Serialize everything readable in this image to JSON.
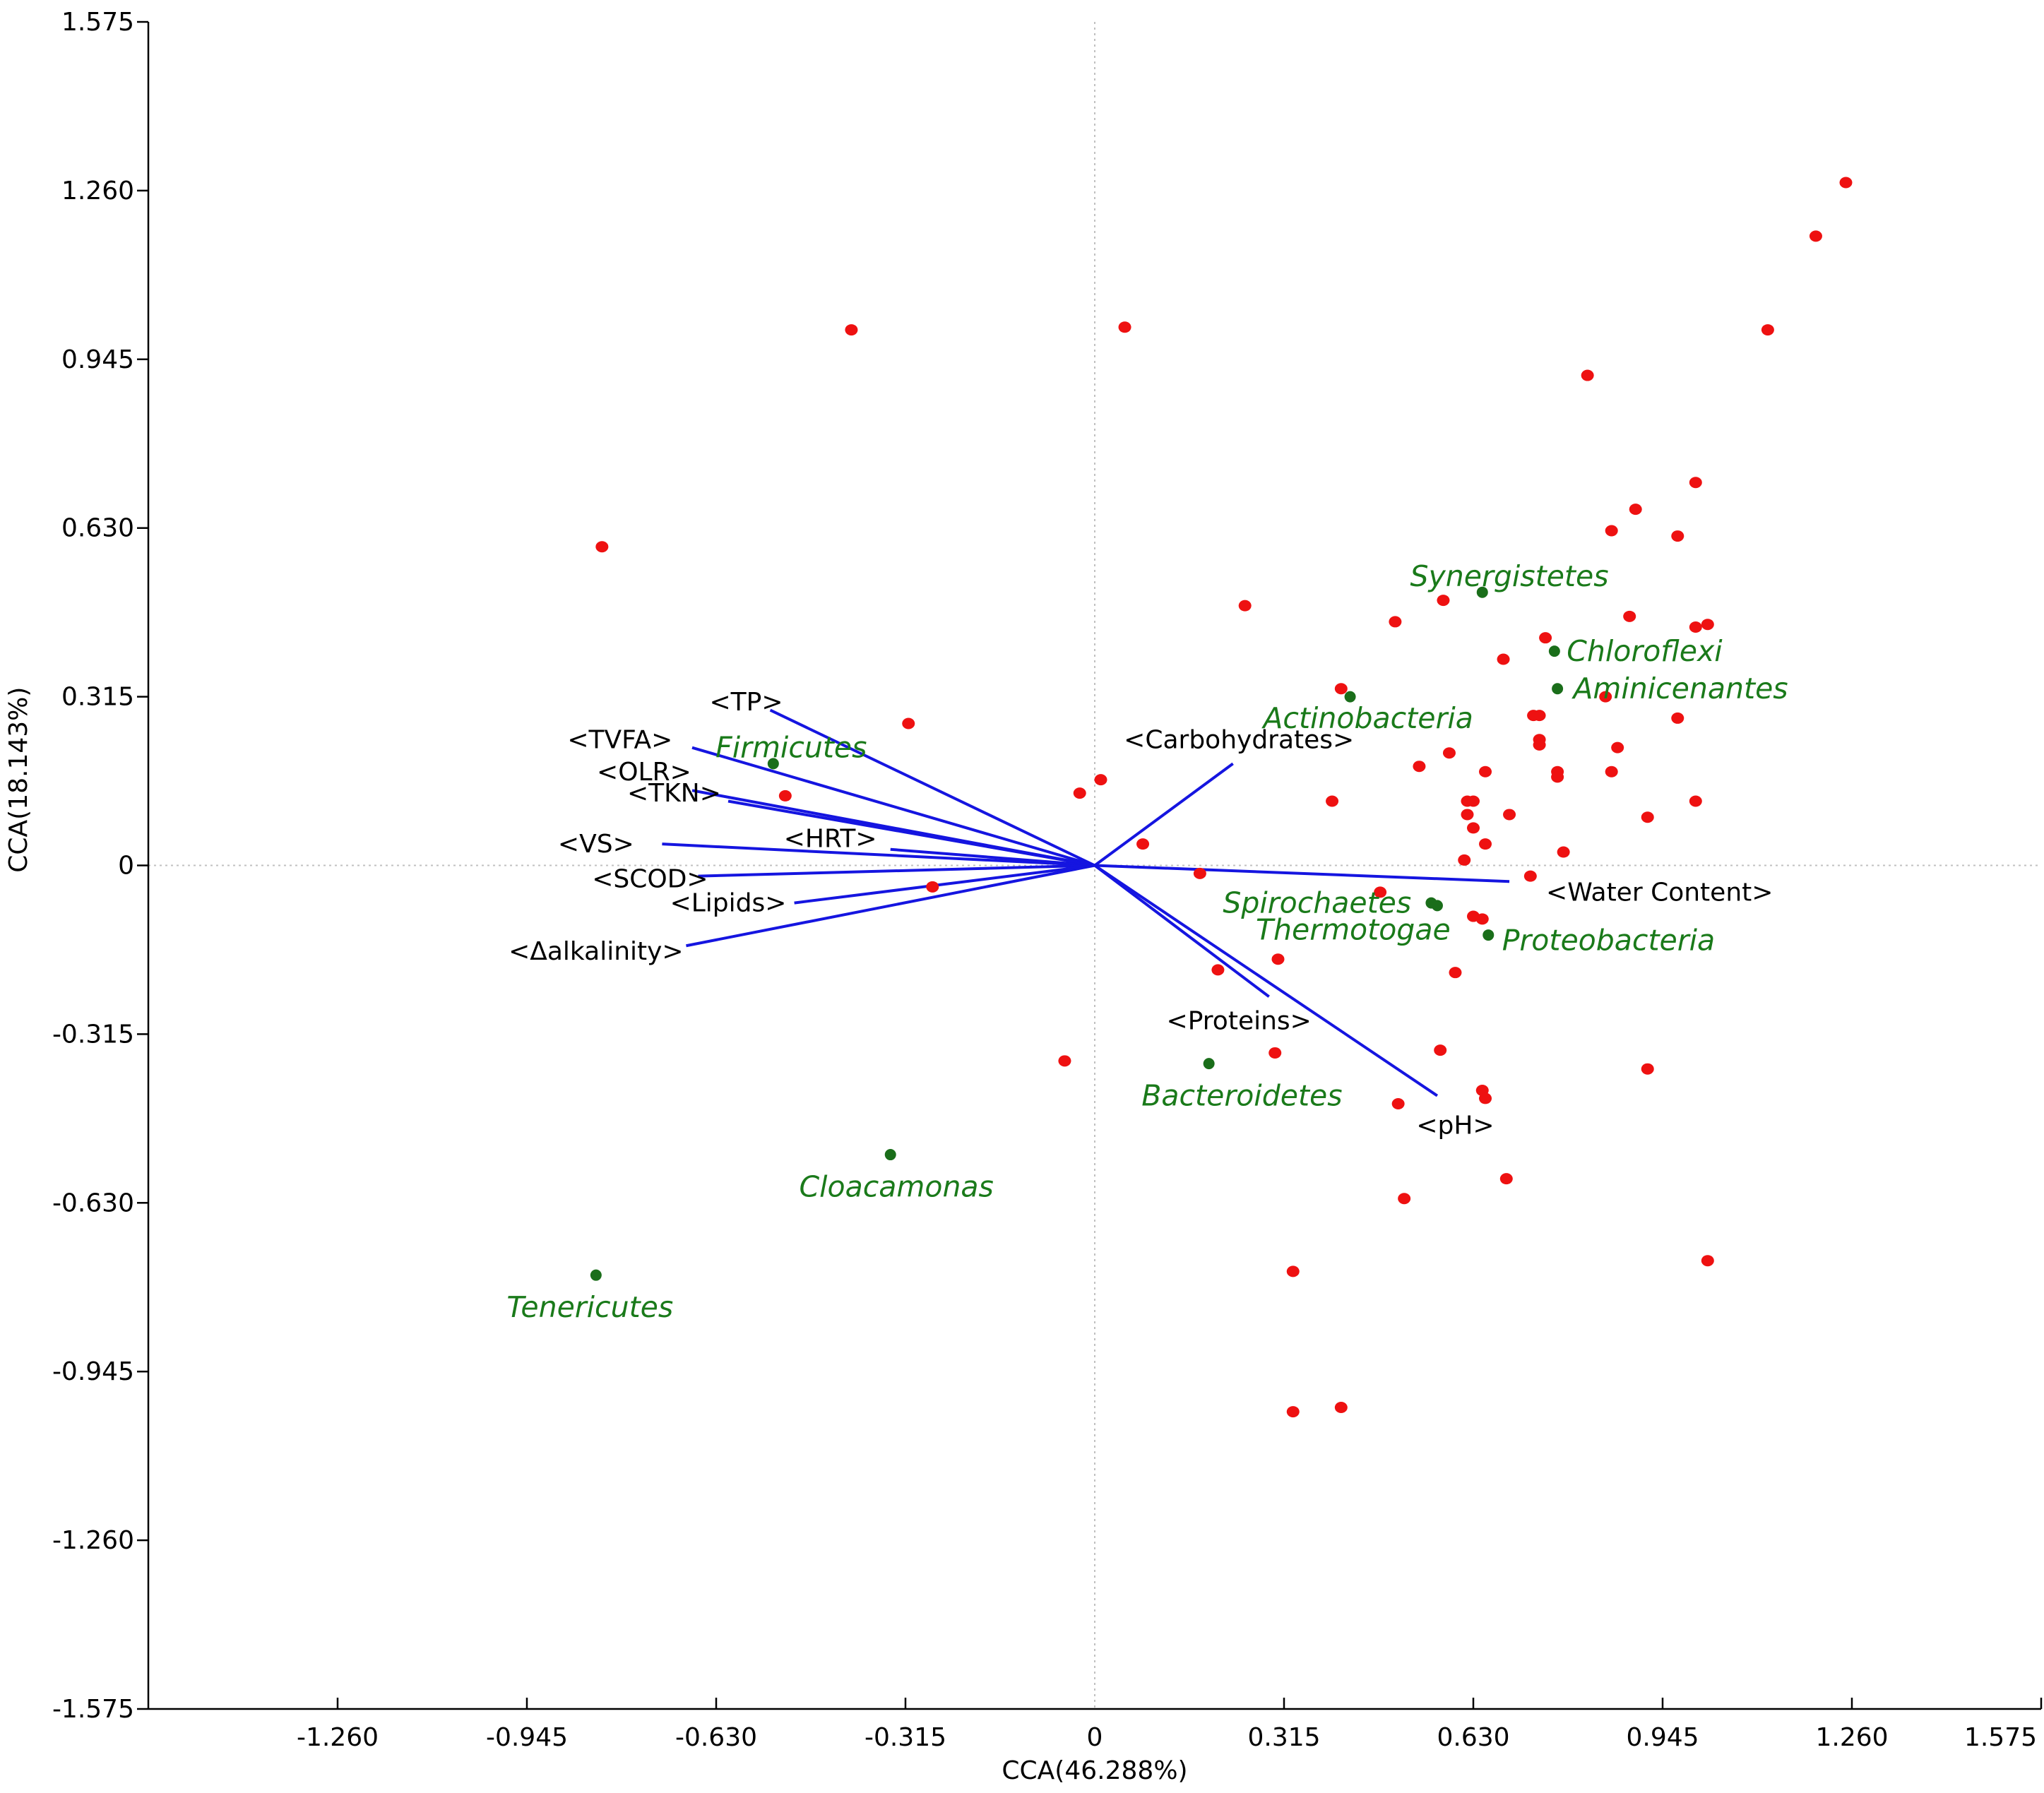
{
  "chart_data": {
    "type": "scatter",
    "subtype": "cca-triplot",
    "xlabel": "CCA(46.288%)",
    "ylabel": "CCA(18.143%)",
    "xlim": [
      -1.575,
      1.575
    ],
    "ylim": [
      -1.575,
      1.575
    ],
    "x_ticks": [
      "-1.260",
      "-0.945",
      "-0.630",
      "-0.315",
      "0",
      "0.315",
      "0.630",
      "0.945",
      "1.260",
      "1.575"
    ],
    "x_tick_values": [
      -1.26,
      -0.945,
      -0.63,
      -0.315,
      0,
      0.315,
      0.63,
      0.945,
      1.26,
      1.575
    ],
    "y_ticks": [
      "1.575",
      "1.260",
      "0.945",
      "0.630",
      "0.315",
      "0",
      "-0.315",
      "-0.630",
      "-0.945",
      "-1.260",
      "-1.575"
    ],
    "y_tick_values": [
      1.575,
      1.26,
      0.945,
      0.63,
      0.315,
      0,
      -0.315,
      -0.63,
      -0.945,
      -1.26,
      -1.575
    ],
    "colors": {
      "samples": "#ee1111",
      "taxa": "#1a6e1a",
      "taxa_text": "#1a7a1a",
      "vectors": "#1515e0",
      "origin_lines": "#c0c0c0"
    },
    "env_vectors": [
      {
        "name": "<TP>",
        "x": -0.54,
        "y": 0.29,
        "lx": -0.58,
        "ly": 0.305
      },
      {
        "name": "<TVFA>",
        "x": -0.67,
        "y": 0.22,
        "lx": -0.79,
        "ly": 0.235
      },
      {
        "name": "<OLR>",
        "x": -0.67,
        "y": 0.14,
        "lx": -0.75,
        "ly": 0.175
      },
      {
        "name": "<TKN>",
        "x": -0.61,
        "y": 0.12,
        "lx": -0.7,
        "ly": 0.135
      },
      {
        "name": "<HRT>",
        "x": -0.34,
        "y": 0.03,
        "lx": -0.44,
        "ly": 0.05
      },
      {
        "name": "<VS>",
        "x": -0.72,
        "y": 0.04,
        "lx": -0.83,
        "ly": 0.04
      },
      {
        "name": "<SCOD>",
        "x": -0.66,
        "y": -0.02,
        "lx": -0.74,
        "ly": -0.025
      },
      {
        "name": "<Lipids>",
        "x": -0.5,
        "y": -0.07,
        "lx": -0.61,
        "ly": -0.07
      },
      {
        "name": "<Δalkalinity>",
        "x": -0.68,
        "y": -0.15,
        "lx": -0.83,
        "ly": -0.16
      },
      {
        "name": "<Carbohydrates>",
        "x": 0.23,
        "y": 0.19,
        "lx": 0.24,
        "ly": 0.235
      },
      {
        "name": "<Water Content>",
        "x": 0.69,
        "y": -0.03,
        "lx": 0.94,
        "ly": -0.05
      },
      {
        "name": "<Proteins>",
        "x": 0.29,
        "y": -0.245,
        "lx": 0.24,
        "ly": -0.29
      },
      {
        "name": "<pH>",
        "x": 0.57,
        "y": -0.43,
        "lx": 0.6,
        "ly": -0.485
      }
    ],
    "taxa": [
      {
        "name": "Firmicutes",
        "x": -0.535,
        "y": 0.19,
        "lx": -0.505,
        "ly": 0.22
      },
      {
        "name": "Synergistetes",
        "x": 0.645,
        "y": 0.51,
        "lx": 0.69,
        "ly": 0.54
      },
      {
        "name": "Chloroflexi",
        "x": 0.765,
        "y": 0.4,
        "lx": 0.915,
        "ly": 0.4
      },
      {
        "name": "Aminicenantes",
        "x": 0.77,
        "y": 0.33,
        "lx": 0.975,
        "ly": 0.33
      },
      {
        "name": "Actinobacteria",
        "x": 0.425,
        "y": 0.315,
        "lx": 0.455,
        "ly": 0.275
      },
      {
        "name": "Spirochaetes",
        "x": 0.56,
        "y": -0.07,
        "lx": 0.37,
        "ly": -0.07
      },
      {
        "name": "Thermotogae",
        "x": 0.57,
        "y": -0.075,
        "lx": 0.43,
        "ly": -0.12
      },
      {
        "name": "Proteobacteria",
        "x": 0.655,
        "y": -0.13,
        "lx": 0.855,
        "ly": -0.14
      },
      {
        "name": "Bacteroidetes",
        "x": 0.19,
        "y": -0.37,
        "lx": 0.245,
        "ly": -0.43
      },
      {
        "name": "Cloacamonas",
        "x": -0.34,
        "y": -0.54,
        "lx": -0.33,
        "ly": -0.6
      },
      {
        "name": "Tenericutes",
        "x": -0.83,
        "y": -0.765,
        "lx": -0.84,
        "ly": -0.825
      }
    ],
    "samples": [
      [
        1.25,
        1.275
      ],
      [
        1.2,
        1.175
      ],
      [
        1.12,
        1.0
      ],
      [
        0.82,
        0.915
      ],
      [
        -0.405,
        1.0
      ],
      [
        0.05,
        1.005
      ],
      [
        1.0,
        0.715
      ],
      [
        0.9,
        0.665
      ],
      [
        0.86,
        0.625
      ],
      [
        0.97,
        0.615
      ],
      [
        -0.82,
        0.595
      ],
      [
        0.25,
        0.485
      ],
      [
        0.5,
        0.455
      ],
      [
        0.58,
        0.495
      ],
      [
        0.75,
        0.425
      ],
      [
        0.68,
        0.385
      ],
      [
        0.89,
        0.465
      ],
      [
        1.0,
        0.445
      ],
      [
        1.02,
        0.45
      ],
      [
        0.85,
        0.315
      ],
      [
        0.41,
        0.33
      ],
      [
        0.73,
        0.28
      ],
      [
        0.74,
        0.28
      ],
      [
        0.97,
        0.275
      ],
      [
        -0.31,
        0.265
      ],
      [
        0.87,
        0.22
      ],
      [
        0.74,
        0.235
      ],
      [
        0.74,
        0.225
      ],
      [
        0.59,
        0.21
      ],
      [
        0.54,
        0.185
      ],
      [
        0.65,
        0.175
      ],
      [
        0.86,
        0.175
      ],
      [
        0.77,
        0.175
      ],
      [
        0.77,
        0.165
      ],
      [
        0.01,
        0.16
      ],
      [
        -0.025,
        0.135
      ],
      [
        -0.515,
        0.13
      ],
      [
        0.395,
        0.12
      ],
      [
        0.62,
        0.12
      ],
      [
        0.63,
        0.12
      ],
      [
        1.0,
        0.12
      ],
      [
        0.62,
        0.095
      ],
      [
        0.92,
        0.09
      ],
      [
        0.69,
        0.095
      ],
      [
        0.63,
        0.07
      ],
      [
        0.65,
        0.04
      ],
      [
        0.08,
        0.04
      ],
      [
        0.78,
        0.025
      ],
      [
        0.615,
        0.01
      ],
      [
        0.175,
        -0.015
      ],
      [
        0.725,
        -0.02
      ],
      [
        -0.27,
        -0.04
      ],
      [
        0.475,
        -0.05
      ],
      [
        0.63,
        -0.095
      ],
      [
        0.645,
        -0.1
      ],
      [
        0.305,
        -0.175
      ],
      [
        0.205,
        -0.195
      ],
      [
        0.6,
        -0.2
      ],
      [
        -0.05,
        -0.365
      ],
      [
        0.3,
        -0.35
      ],
      [
        0.575,
        -0.345
      ],
      [
        0.92,
        -0.38
      ],
      [
        0.645,
        -0.42
      ],
      [
        0.65,
        -0.435
      ],
      [
        0.505,
        -0.445
      ],
      [
        0.685,
        -0.585
      ],
      [
        0.515,
        -0.622
      ],
      [
        0.33,
        -0.758
      ],
      [
        1.02,
        -0.738
      ],
      [
        0.41,
        -1.012
      ],
      [
        0.33,
        -1.02
      ]
    ]
  }
}
